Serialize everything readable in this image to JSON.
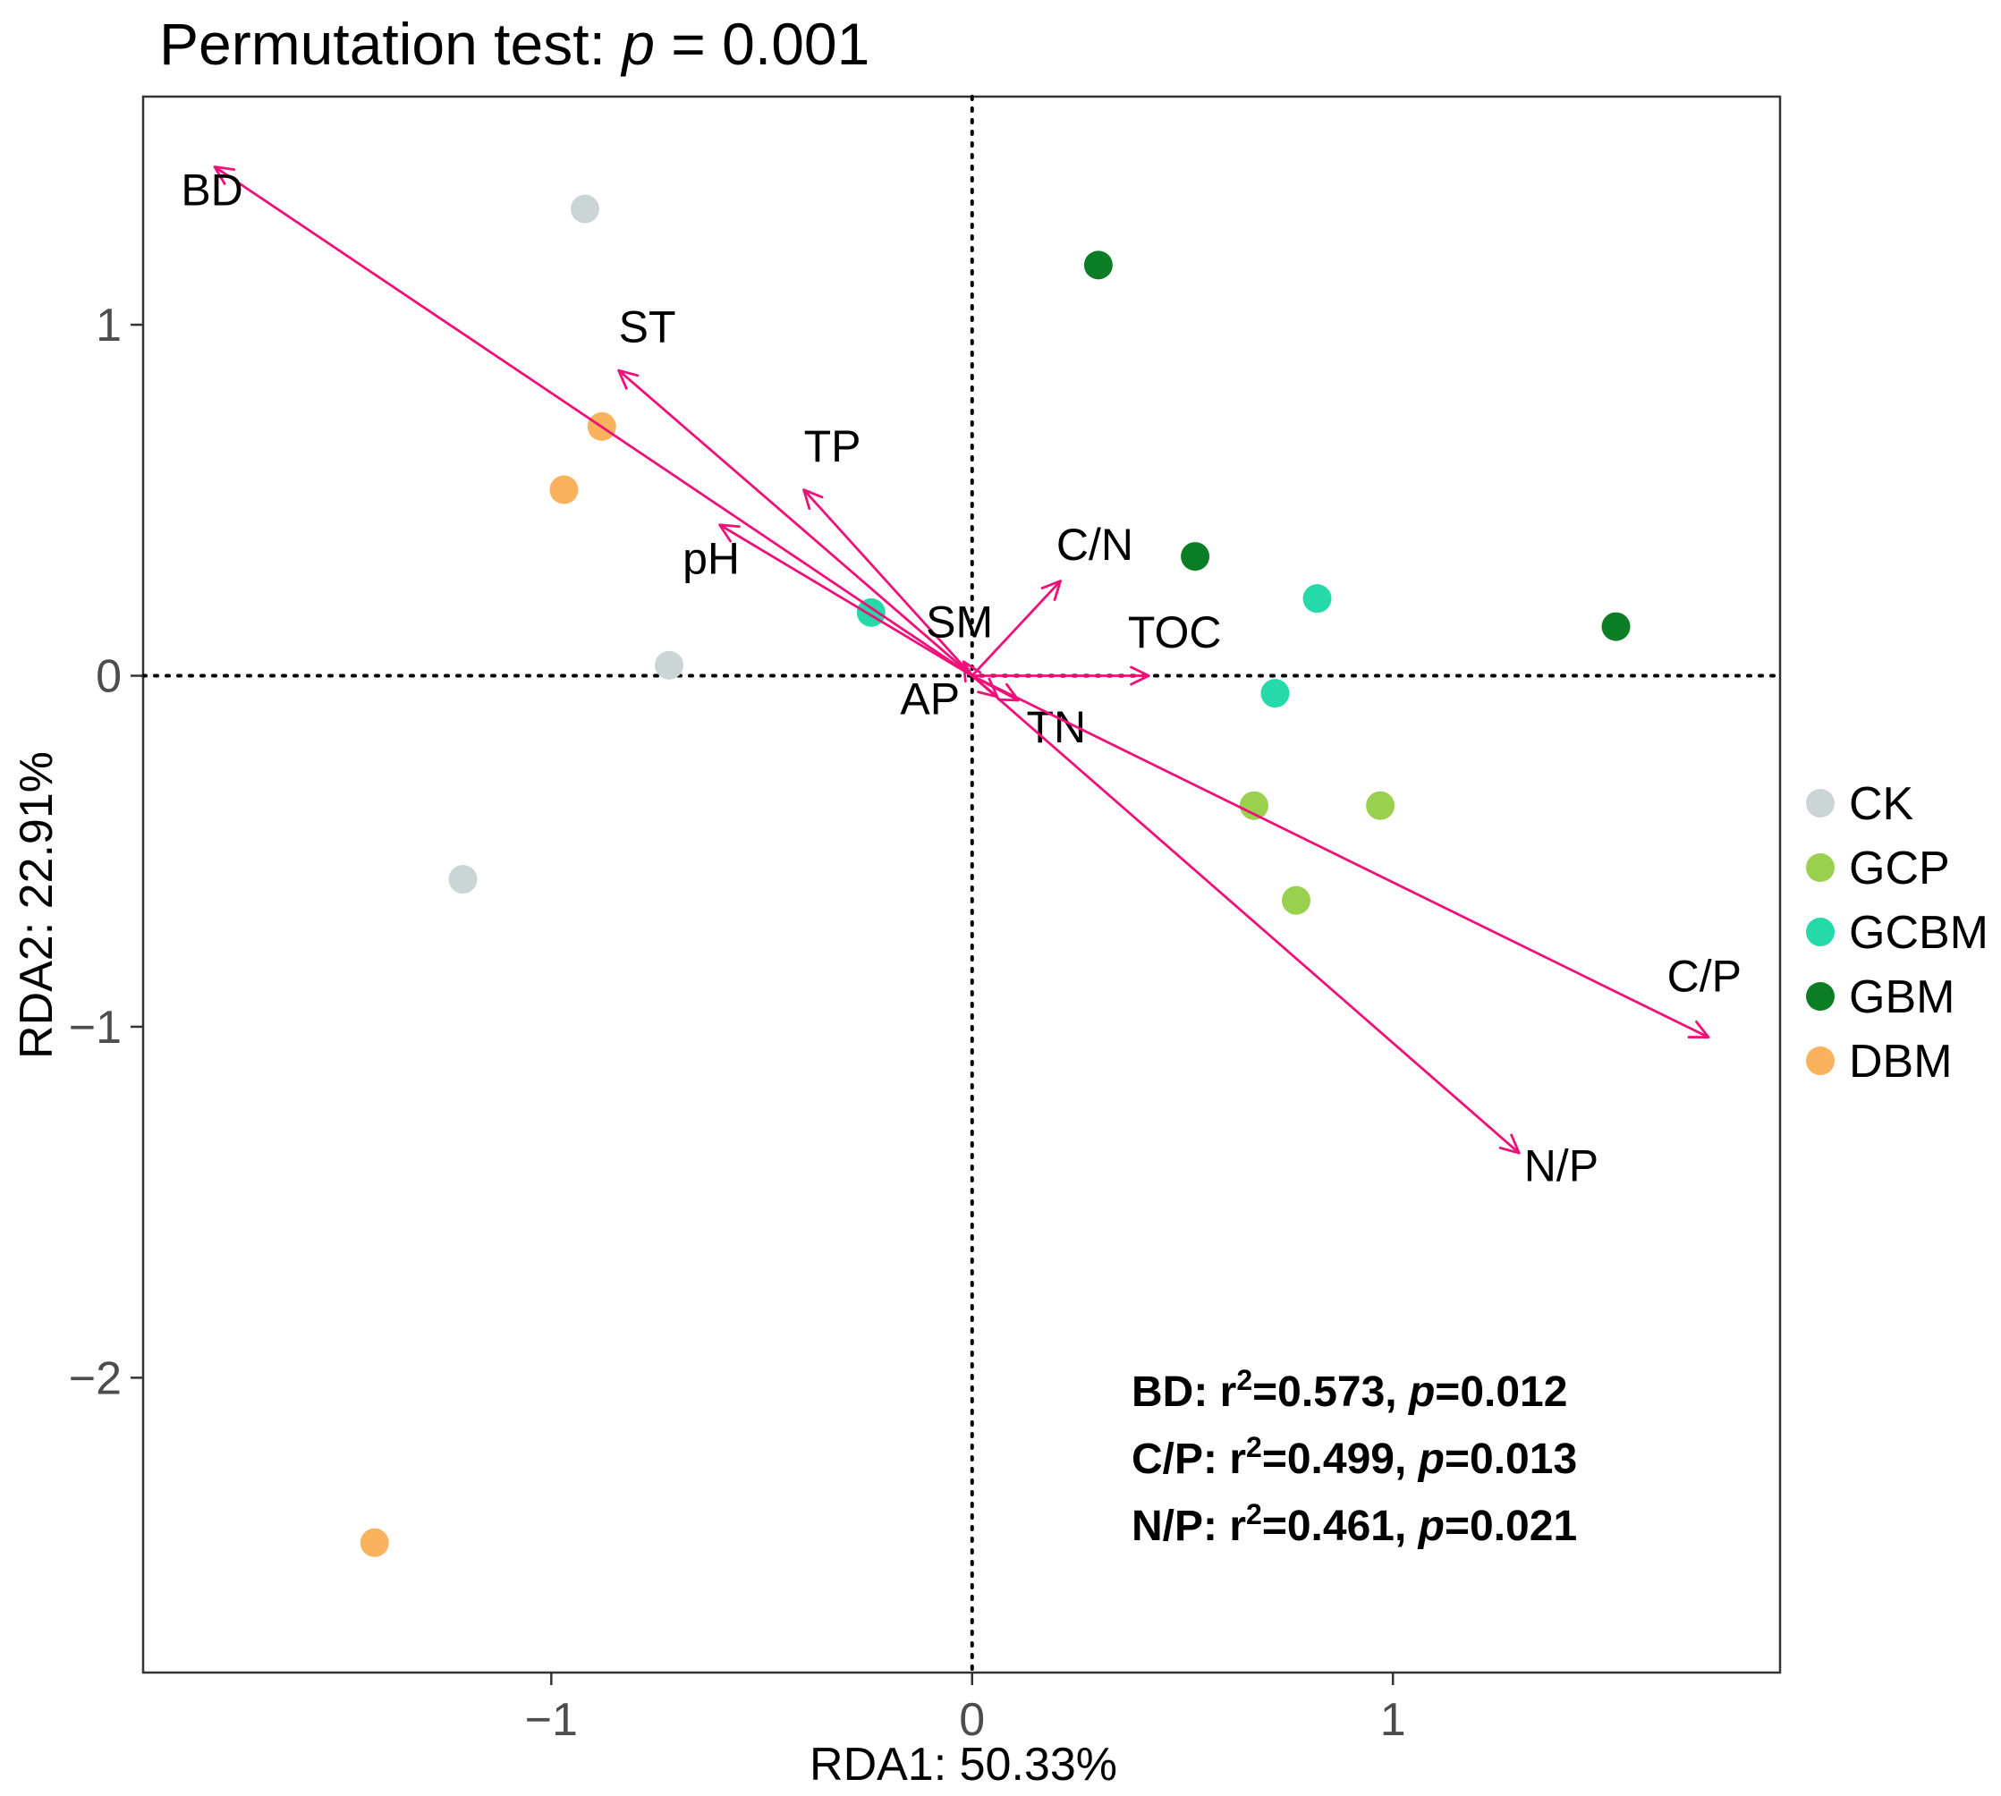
{
  "chart_data": {
    "type": "scatter",
    "title_prefix": "Permutation test: ",
    "title_p": "p",
    "title_suffix": " = 0.001",
    "xlabel": "RDA1: 50.33%",
    "ylabel": "RDA2: 22.91%",
    "xlim": [
      -1.97,
      1.92
    ],
    "ylim": [
      -2.84,
      1.65
    ],
    "xticks": [
      -1,
      0,
      1
    ],
    "xtick_labels": [
      "−1",
      "0",
      "1"
    ],
    "yticks": [
      -2,
      -1,
      0,
      1
    ],
    "ytick_labels": [
      "−2",
      "−1",
      "0",
      "1"
    ],
    "reference_lines": {
      "x": 0,
      "y": 0,
      "style": "dotted"
    },
    "grid": false,
    "legend_position": "right",
    "series": [
      {
        "name": "CK",
        "color": "#ccd5d5",
        "points": [
          [
            -0.92,
            1.33
          ],
          [
            -0.72,
            0.03
          ],
          [
            -1.21,
            -0.58
          ]
        ]
      },
      {
        "name": "GCP",
        "color": "#99d04d",
        "points": [
          [
            0.67,
            -0.37
          ],
          [
            0.97,
            -0.37
          ],
          [
            0.77,
            -0.64
          ]
        ]
      },
      {
        "name": "GCBM",
        "color": "#26d9a8",
        "points": [
          [
            -0.24,
            0.18
          ],
          [
            0.82,
            0.22
          ],
          [
            0.72,
            -0.05
          ]
        ]
      },
      {
        "name": "GBM",
        "color": "#0b7d24",
        "points": [
          [
            0.3,
            1.17
          ],
          [
            0.53,
            0.34
          ],
          [
            1.53,
            0.14
          ]
        ]
      },
      {
        "name": "DBM",
        "color": "#fbb25c",
        "points": [
          [
            -0.88,
            0.71
          ],
          [
            -0.97,
            0.53
          ],
          [
            -1.42,
            -2.47
          ]
        ]
      }
    ],
    "arrows": [
      {
        "name": "BD",
        "x": -1.8,
        "y": 1.45,
        "label_x": -1.88,
        "label_y": 1.34,
        "label_anchor": "start"
      },
      {
        "name": "ST",
        "x": -0.84,
        "y": 0.87,
        "label_x": -0.84,
        "label_y": 0.95,
        "label_anchor": "start"
      },
      {
        "name": "TP",
        "x": -0.4,
        "y": 0.53,
        "label_x": -0.4,
        "label_y": 0.61,
        "label_anchor": "start"
      },
      {
        "name": "pH",
        "x": -0.6,
        "y": 0.43,
        "label_x": -0.62,
        "label_y": 0.29,
        "label_anchor": "middle"
      },
      {
        "name": "SM",
        "x": -0.02,
        "y": 0.04,
        "label_x": -0.03,
        "label_y": 0.11,
        "label_anchor": "middle"
      },
      {
        "name": "C/N",
        "x": 0.21,
        "y": 0.27,
        "label_x": 0.2,
        "label_y": 0.33,
        "label_anchor": "start"
      },
      {
        "name": "TOC",
        "x": 0.42,
        "y": 0.0,
        "label_x": 0.37,
        "label_y": 0.08,
        "label_anchor": "start"
      },
      {
        "name": "AP",
        "x": 0.06,
        "y": -0.06,
        "label_x": -0.1,
        "label_y": -0.11,
        "label_anchor": "middle"
      },
      {
        "name": "TN",
        "x": 0.11,
        "y": -0.07,
        "label_x": 0.2,
        "label_y": -0.19,
        "label_anchor": "middle"
      },
      {
        "name": "C/P",
        "x": 1.75,
        "y": -1.03,
        "label_x": 1.74,
        "label_y": -0.9,
        "label_anchor": "middle"
      },
      {
        "name": "N/P",
        "x": 1.3,
        "y": -1.36,
        "label_x": 1.4,
        "label_y": -1.44,
        "label_anchor": "middle"
      }
    ],
    "arrow_color": "#f0107a",
    "annotations": [
      {
        "var": "BD",
        "r_label": "r",
        "sup": "2",
        "r_value": "=0.573, ",
        "p_label": "p",
        "p_value": "=0.012"
      },
      {
        "var": "C/P",
        "r_label": "r",
        "sup": "2",
        "r_value": "=0.499, ",
        "p_label": "p",
        "p_value": "=0.013"
      },
      {
        "var": "N/P",
        "r_label": "r",
        "sup": "2",
        "r_value": "=0.461, ",
        "p_label": "p",
        "p_value": "=0.021"
      }
    ]
  }
}
